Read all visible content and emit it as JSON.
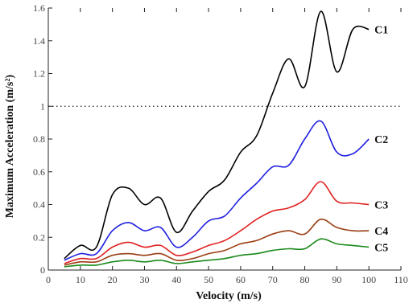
{
  "chart_data": {
    "type": "line",
    "xlabel": "Velocity (m/s)",
    "ylabel": "Maximum Acceleration (m/s²)",
    "xlim": [
      0,
      110
    ],
    "ylim": [
      0,
      1.6
    ],
    "x_tick_labels": [
      "0",
      "10",
      "20",
      "30",
      "40",
      "50",
      "60",
      "70",
      "80",
      "90",
      "100",
      "110"
    ],
    "y_tick_labels": [
      "0",
      "0.2",
      "0.4",
      "0.6",
      "0.8",
      "1",
      "1.2",
      "1.4",
      "1.6"
    ],
    "grid": false,
    "reference_line": {
      "y": 1.0,
      "style": "dotted"
    },
    "x": [
      5,
      10,
      15,
      20,
      25,
      30,
      35,
      40,
      45,
      50,
      55,
      60,
      65,
      70,
      75,
      80,
      85,
      90,
      95,
      100
    ],
    "series": [
      {
        "name": "C1",
        "color": "#000000",
        "values": [
          0.07,
          0.15,
          0.14,
          0.46,
          0.5,
          0.4,
          0.44,
          0.23,
          0.36,
          0.48,
          0.55,
          0.72,
          0.82,
          1.08,
          1.29,
          1.12,
          1.58,
          1.21,
          1.47,
          1.47
        ]
      },
      {
        "name": "C2",
        "color": "#1f1fe0",
        "values": [
          0.06,
          0.1,
          0.1,
          0.24,
          0.29,
          0.24,
          0.26,
          0.14,
          0.2,
          0.3,
          0.33,
          0.44,
          0.53,
          0.63,
          0.64,
          0.8,
          0.91,
          0.72,
          0.71,
          0.8
        ]
      },
      {
        "name": "C3",
        "color": "#e02020",
        "values": [
          0.04,
          0.07,
          0.07,
          0.14,
          0.17,
          0.14,
          0.15,
          0.09,
          0.11,
          0.15,
          0.18,
          0.24,
          0.31,
          0.36,
          0.38,
          0.43,
          0.54,
          0.42,
          0.41,
          0.4
        ]
      },
      {
        "name": "C4",
        "color": "#9a3d12",
        "values": [
          0.03,
          0.05,
          0.05,
          0.09,
          0.1,
          0.09,
          0.1,
          0.06,
          0.07,
          0.1,
          0.12,
          0.16,
          0.18,
          0.22,
          0.24,
          0.22,
          0.31,
          0.26,
          0.24,
          0.24
        ]
      },
      {
        "name": "C5",
        "color": "#1a8a1a",
        "values": [
          0.02,
          0.03,
          0.03,
          0.05,
          0.06,
          0.05,
          0.06,
          0.04,
          0.05,
          0.06,
          0.07,
          0.09,
          0.1,
          0.12,
          0.13,
          0.13,
          0.19,
          0.16,
          0.15,
          0.14
        ]
      }
    ]
  }
}
